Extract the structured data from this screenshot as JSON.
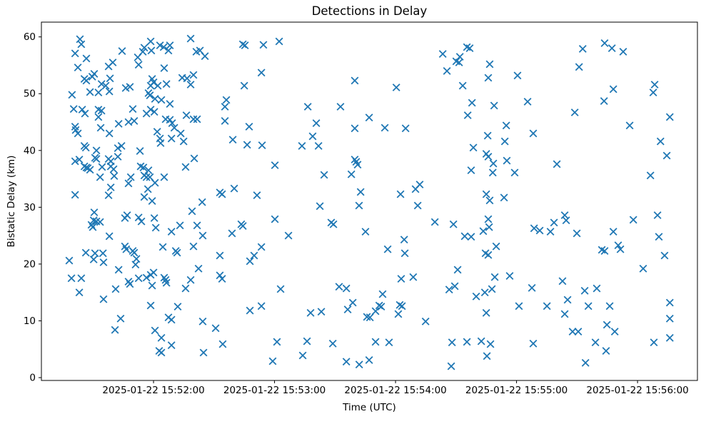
{
  "figure": {
    "title": "Detections in Delay",
    "xlabel": "Time (UTC)",
    "ylabel": "Bistatic Delay (km)"
  },
  "chart_data": {
    "type": "scatter",
    "title": "Detections in Delay",
    "xlabel": "Time (UTC)",
    "ylabel": "Bistatic Delay (km)",
    "marker": "x",
    "marker_color": "#1f77b4",
    "axis_color": "#000000",
    "grid": false,
    "legend": null,
    "x_unit": "seconds after 2025-01-22 15:51:00 UTC",
    "xlim": [
      4.4,
      329.7
    ],
    "ylim": [
      -0.5,
      62.6
    ],
    "x_ticks": [
      {
        "value": 60,
        "label": "2025-01-22 15:52:00"
      },
      {
        "value": 120,
        "label": "2025-01-22 15:53:00"
      },
      {
        "value": 180,
        "label": "2025-01-22 15:54:00"
      },
      {
        "value": 240,
        "label": "2025-01-22 15:55:00"
      },
      {
        "value": 300,
        "label": "2025-01-22 15:56:00"
      }
    ],
    "y_ticks": [
      0,
      10,
      20,
      30,
      40,
      50,
      60
    ],
    "points": [
      [
        23.5,
        59.6
      ],
      [
        24.2,
        58.7
      ],
      [
        21.1,
        57.1
      ],
      [
        26.7,
        56.2
      ],
      [
        44.4,
        57.5
      ],
      [
        54.7,
        57.4
      ],
      [
        55.4,
        58.1
      ],
      [
        58.6,
        59.2
      ],
      [
        58.9,
        57.6
      ],
      [
        63.2,
        58.5
      ],
      [
        65.0,
        58.2
      ],
      [
        68.1,
        58.5
      ],
      [
        67.4,
        57.6
      ],
      [
        78.4,
        59.7
      ],
      [
        81.2,
        57.4
      ],
      [
        83.0,
        57.6
      ],
      [
        85.5,
        56.6
      ],
      [
        22.5,
        54.6
      ],
      [
        37.7,
        54.8
      ],
      [
        39.8,
        55.5
      ],
      [
        52.2,
        56.4
      ],
      [
        52.6,
        55.1
      ],
      [
        65.3,
        54.5
      ],
      [
        30.6,
        53.5
      ],
      [
        25.7,
        52.6
      ],
      [
        26.7,
        52.3
      ],
      [
        29.6,
        53.0
      ],
      [
        38.4,
        52.7
      ],
      [
        34.2,
        51.7
      ],
      [
        36.3,
        51.4
      ],
      [
        38.1,
        50.4
      ],
      [
        46.2,
        51.0
      ],
      [
        48.3,
        51.2
      ],
      [
        59.3,
        52.6
      ],
      [
        60.0,
        52.0
      ],
      [
        58.6,
        51.4
      ],
      [
        62.1,
        51.4
      ],
      [
        66.4,
        51.7
      ],
      [
        74.2,
        52.8
      ],
      [
        76.6,
        52.7
      ],
      [
        79.8,
        53.3
      ],
      [
        78.4,
        51.6
      ],
      [
        19.6,
        49.8
      ],
      [
        28.5,
        50.3
      ],
      [
        32.7,
        50.2
      ],
      [
        57.5,
        50.1
      ],
      [
        58.2,
        49.7
      ],
      [
        60.7,
        49.1
      ],
      [
        63.9,
        48.9
      ],
      [
        68.1,
        48.2
      ],
      [
        20.4,
        47.3
      ],
      [
        24.6,
        47.2
      ],
      [
        32.7,
        47.2
      ],
      [
        34.2,
        47.0
      ],
      [
        26.0,
        46.5
      ],
      [
        49.7,
        47.3
      ],
      [
        56.5,
        46.5
      ],
      [
        58.6,
        47.2
      ],
      [
        60.4,
        46.8
      ],
      [
        32.7,
        45.9
      ],
      [
        42.7,
        44.7
      ],
      [
        47.6,
        45.0
      ],
      [
        50.4,
        45.2
      ],
      [
        66.0,
        45.5
      ],
      [
        68.1,
        45.4
      ],
      [
        69.2,
        44.8
      ],
      [
        76.3,
        46.2
      ],
      [
        79.8,
        45.5
      ],
      [
        81.6,
        45.5
      ],
      [
        21.1,
        44.2
      ],
      [
        21.4,
        43.6
      ],
      [
        22.5,
        43.0
      ],
      [
        33.8,
        44.0
      ],
      [
        38.1,
        43.0
      ],
      [
        61.8,
        43.3
      ],
      [
        70.3,
        44.0
      ],
      [
        73.5,
        43.0
      ],
      [
        63.2,
        42.1
      ],
      [
        104.3,
        58.7
      ],
      [
        105.3,
        58.5
      ],
      [
        114.5,
        58.6
      ],
      [
        122.3,
        59.2
      ],
      [
        113.5,
        53.7
      ],
      [
        105.0,
        51.4
      ],
      [
        159.8,
        52.3
      ],
      [
        96.1,
        48.9
      ],
      [
        95.4,
        47.7
      ],
      [
        136.5,
        47.7
      ],
      [
        152.7,
        47.7
      ],
      [
        95.4,
        45.2
      ],
      [
        107.4,
        44.2
      ],
      [
        99.3,
        41.9
      ],
      [
        140.7,
        44.8
      ],
      [
        159.8,
        43.9
      ],
      [
        138.9,
        42.5
      ],
      [
        203.4,
        57.0
      ],
      [
        215.4,
        58.2
      ],
      [
        216.8,
        58.0
      ],
      [
        211.9,
        56.5
      ],
      [
        210.1,
        55.7
      ],
      [
        211.5,
        55.5
      ],
      [
        226.7,
        55.2
      ],
      [
        205.5,
        54.0
      ],
      [
        226.0,
        52.8
      ],
      [
        240.5,
        53.2
      ],
      [
        180.4,
        51.1
      ],
      [
        213.3,
        51.4
      ],
      [
        217.9,
        48.4
      ],
      [
        228.9,
        47.9
      ],
      [
        245.5,
        48.6
      ],
      [
        215.8,
        46.2
      ],
      [
        166.9,
        45.8
      ],
      [
        174.7,
        44.0
      ],
      [
        185.0,
        43.9
      ],
      [
        234.9,
        44.4
      ],
      [
        225.7,
        42.6
      ],
      [
        234.2,
        41.6
      ],
      [
        272.8,
        57.9
      ],
      [
        283.7,
        58.9
      ],
      [
        287.3,
        58.0
      ],
      [
        292.9,
        57.4
      ],
      [
        271.0,
        54.7
      ],
      [
        288.0,
        50.8
      ],
      [
        308.5,
        51.6
      ],
      [
        307.8,
        50.2
      ],
      [
        283.4,
        48.7
      ],
      [
        268.9,
        46.7
      ],
      [
        316.0,
        45.9
      ],
      [
        296.1,
        44.4
      ],
      [
        248.3,
        43.0
      ],
      [
        311.4,
        41.6
      ],
      [
        25.7,
        40.8
      ],
      [
        26.4,
        40.5
      ],
      [
        31.7,
        40.0
      ],
      [
        21.1,
        38.1
      ],
      [
        23.2,
        38.4
      ],
      [
        25.7,
        37.2
      ],
      [
        26.7,
        37.0
      ],
      [
        27.4,
        36.9
      ],
      [
        28.5,
        36.6
      ],
      [
        31.0,
        38.7
      ],
      [
        31.7,
        38.5
      ],
      [
        21.1,
        32.2
      ],
      [
        30.6,
        29.1
      ],
      [
        30.3,
        27.7
      ],
      [
        31.7,
        27.5
      ],
      [
        33.5,
        27.4
      ],
      [
        29.2,
        26.9
      ],
      [
        29.9,
        26.5
      ],
      [
        45.8,
        28.1
      ],
      [
        46.9,
        28.6
      ],
      [
        52.6,
        28.2
      ],
      [
        54.0,
        27.5
      ],
      [
        60.4,
        28.1
      ],
      [
        61.1,
        26.4
      ],
      [
        68.9,
        25.7
      ],
      [
        73.1,
        26.8
      ],
      [
        81.6,
        26.8
      ],
      [
        38.1,
        24.9
      ],
      [
        45.8,
        23.1
      ],
      [
        46.5,
        22.6
      ],
      [
        49.7,
        22.3
      ],
      [
        50.4,
        22.0
      ],
      [
        64.6,
        23.0
      ],
      [
        71.0,
        22.3
      ],
      [
        71.7,
        22.0
      ],
      [
        79.8,
        23.1
      ],
      [
        84.4,
        25.0
      ],
      [
        26.4,
        22.0
      ],
      [
        31.0,
        21.9
      ],
      [
        34.9,
        21.9
      ],
      [
        18.2,
        20.6
      ],
      [
        30.3,
        20.8
      ],
      [
        51.5,
        20.9
      ],
      [
        51.1,
        19.9
      ],
      [
        63.5,
        41.3
      ],
      [
        68.9,
        42.1
      ],
      [
        74.9,
        41.6
      ],
      [
        42.3,
        40.4
      ],
      [
        44.1,
        40.8
      ],
      [
        53.3,
        39.9
      ],
      [
        42.3,
        38.9
      ],
      [
        37.7,
        38.5
      ],
      [
        38.8,
        38.1
      ],
      [
        34.5,
        37.1
      ],
      [
        38.8,
        37.2
      ],
      [
        40.2,
        36.7
      ],
      [
        53.6,
        37.2
      ],
      [
        55.0,
        37.0
      ],
      [
        57.5,
        36.5
      ],
      [
        33.5,
        35.3
      ],
      [
        40.5,
        35.5
      ],
      [
        48.7,
        35.3
      ],
      [
        55.4,
        35.6
      ],
      [
        56.5,
        35.3
      ],
      [
        58.2,
        35.3
      ],
      [
        65.3,
        35.3
      ],
      [
        75.9,
        37.1
      ],
      [
        80.2,
        38.6
      ],
      [
        47.6,
        34.2
      ],
      [
        60.7,
        34.3
      ],
      [
        38.8,
        33.5
      ],
      [
        57.2,
        33.2
      ],
      [
        37.7,
        32.1
      ],
      [
        55.4,
        31.8
      ],
      [
        59.3,
        31.1
      ],
      [
        84.1,
        30.9
      ],
      [
        79.1,
        29.3
      ],
      [
        106.4,
        41.0
      ],
      [
        113.8,
        40.9
      ],
      [
        133.6,
        40.8
      ],
      [
        141.8,
        40.8
      ],
      [
        120.2,
        37.4
      ],
      [
        159.8,
        38.4
      ],
      [
        160.5,
        38.0
      ],
      [
        161.2,
        37.5
      ],
      [
        144.6,
        35.7
      ],
      [
        158.1,
        35.8
      ],
      [
        100.0,
        33.3
      ],
      [
        92.9,
        32.6
      ],
      [
        94.0,
        32.3
      ],
      [
        111.3,
        32.1
      ],
      [
        162.7,
        32.7
      ],
      [
        142.5,
        30.2
      ],
      [
        161.9,
        30.3
      ],
      [
        120.2,
        27.9
      ],
      [
        103.5,
        27.0
      ],
      [
        104.3,
        26.7
      ],
      [
        98.9,
        25.4
      ],
      [
        126.9,
        25.0
      ],
      [
        148.1,
        27.3
      ],
      [
        149.2,
        27.0
      ],
      [
        165.1,
        25.7
      ],
      [
        113.5,
        23.0
      ],
      [
        92.9,
        21.5
      ],
      [
        109.9,
        21.5
      ],
      [
        107.8,
        20.5
      ],
      [
        218.6,
        40.5
      ],
      [
        225.0,
        39.4
      ],
      [
        226.0,
        38.9
      ],
      [
        228.5,
        37.7
      ],
      [
        235.2,
        38.2
      ],
      [
        217.5,
        36.5
      ],
      [
        228.2,
        36.1
      ],
      [
        239.1,
        36.1
      ],
      [
        189.9,
        33.2
      ],
      [
        192.0,
        34.0
      ],
      [
        182.5,
        32.3
      ],
      [
        191.0,
        30.3
      ],
      [
        225.0,
        32.3
      ],
      [
        226.7,
        31.2
      ],
      [
        233.8,
        31.7
      ],
      [
        199.5,
        27.4
      ],
      [
        208.7,
        27.0
      ],
      [
        226.0,
        27.9
      ],
      [
        226.4,
        26.5
      ],
      [
        223.5,
        25.8
      ],
      [
        214.3,
        24.9
      ],
      [
        217.5,
        24.8
      ],
      [
        184.3,
        24.3
      ],
      [
        176.1,
        22.6
      ],
      [
        184.6,
        21.9
      ],
      [
        229.9,
        23.1
      ],
      [
        224.6,
        21.9
      ],
      [
        226.0,
        21.6
      ],
      [
        314.5,
        39.1
      ],
      [
        260.0,
        37.6
      ],
      [
        306.4,
        35.6
      ],
      [
        263.9,
        28.6
      ],
      [
        264.6,
        27.7
      ],
      [
        258.6,
        27.3
      ],
      [
        248.7,
        26.3
      ],
      [
        251.5,
        25.9
      ],
      [
        256.8,
        25.7
      ],
      [
        269.9,
        25.4
      ],
      [
        297.9,
        27.8
      ],
      [
        309.9,
        28.6
      ],
      [
        288.0,
        25.7
      ],
      [
        310.6,
        24.8
      ],
      [
        282.3,
        22.5
      ],
      [
        283.7,
        22.3
      ],
      [
        290.4,
        23.3
      ],
      [
        291.5,
        22.6
      ],
      [
        313.4,
        21.5
      ],
      [
        35.2,
        20.3
      ],
      [
        42.7,
        19.0
      ],
      [
        82.3,
        19.2
      ],
      [
        19.3,
        17.5
      ],
      [
        24.2,
        17.5
      ],
      [
        52.6,
        17.5
      ],
      [
        56.5,
        17.6
      ],
      [
        60.0,
        18.5
      ],
      [
        58.6,
        18.1
      ],
      [
        47.6,
        16.9
      ],
      [
        48.3,
        16.5
      ],
      [
        66.4,
        16.7
      ],
      [
        65.3,
        17.6
      ],
      [
        66.0,
        17.2
      ],
      [
        78.4,
        17.2
      ],
      [
        59.3,
        16.2
      ],
      [
        41.2,
        15.6
      ],
      [
        75.9,
        15.7
      ],
      [
        23.2,
        15.0
      ],
      [
        35.2,
        13.8
      ],
      [
        58.6,
        12.7
      ],
      [
        72.0,
        12.5
      ],
      [
        43.7,
        10.4
      ],
      [
        67.4,
        10.6
      ],
      [
        68.9,
        10.2
      ],
      [
        84.4,
        9.9
      ],
      [
        40.9,
        8.4
      ],
      [
        60.7,
        8.3
      ],
      [
        63.9,
        7.0
      ],
      [
        68.9,
        5.7
      ],
      [
        62.8,
        4.7
      ],
      [
        63.9,
        4.4
      ],
      [
        84.8,
        4.4
      ],
      [
        92.9,
        18.0
      ],
      [
        94.0,
        17.4
      ],
      [
        123.0,
        15.6
      ],
      [
        152.0,
        16.0
      ],
      [
        155.6,
        15.7
      ],
      [
        107.8,
        11.8
      ],
      [
        113.5,
        12.6
      ],
      [
        137.9,
        11.4
      ],
      [
        143.2,
        11.6
      ],
      [
        156.3,
        12.0
      ],
      [
        158.8,
        13.2
      ],
      [
        165.8,
        10.7
      ],
      [
        90.8,
        8.7
      ],
      [
        94.3,
        5.9
      ],
      [
        121.2,
        6.3
      ],
      [
        136.1,
        6.4
      ],
      [
        148.9,
        6.0
      ],
      [
        134.0,
        3.9
      ],
      [
        119.1,
        2.9
      ],
      [
        155.6,
        2.8
      ],
      [
        162.0,
        2.3
      ],
      [
        166.9,
        3.1
      ],
      [
        210.8,
        19.0
      ],
      [
        182.8,
        17.4
      ],
      [
        188.8,
        17.7
      ],
      [
        229.2,
        17.7
      ],
      [
        236.6,
        17.9
      ],
      [
        173.6,
        14.7
      ],
      [
        206.6,
        15.5
      ],
      [
        209.4,
        16.1
      ],
      [
        220.0,
        14.3
      ],
      [
        224.3,
        15.0
      ],
      [
        227.8,
        15.6
      ],
      [
        247.6,
        15.8
      ],
      [
        167.3,
        10.6
      ],
      [
        170.1,
        11.7
      ],
      [
        171.9,
        12.7
      ],
      [
        172.9,
        12.5
      ],
      [
        182.1,
        12.8
      ],
      [
        183.2,
        12.6
      ],
      [
        181.4,
        11.2
      ],
      [
        194.9,
        9.9
      ],
      [
        225.0,
        11.4
      ],
      [
        241.2,
        12.6
      ],
      [
        170.1,
        6.3
      ],
      [
        176.8,
        6.2
      ],
      [
        208.0,
        6.2
      ],
      [
        215.4,
        6.3
      ],
      [
        222.5,
        6.4
      ],
      [
        227.1,
        5.9
      ],
      [
        248.3,
        6.0
      ],
      [
        225.3,
        3.8
      ],
      [
        207.6,
        2.0
      ],
      [
        302.8,
        19.2
      ],
      [
        262.8,
        17.0
      ],
      [
        273.8,
        15.3
      ],
      [
        279.8,
        15.7
      ],
      [
        265.3,
        13.7
      ],
      [
        255.1,
        12.6
      ],
      [
        275.6,
        12.6
      ],
      [
        286.2,
        12.6
      ],
      [
        263.9,
        11.2
      ],
      [
        316.0,
        13.2
      ],
      [
        316.0,
        10.4
      ],
      [
        316.0,
        7.0
      ],
      [
        284.8,
        9.3
      ],
      [
        288.7,
        8.1
      ],
      [
        267.8,
        8.1
      ],
      [
        270.6,
        8.1
      ],
      [
        279.1,
        6.2
      ],
      [
        308.1,
        6.2
      ],
      [
        284.4,
        4.7
      ],
      [
        274.2,
        2.6
      ]
    ]
  }
}
